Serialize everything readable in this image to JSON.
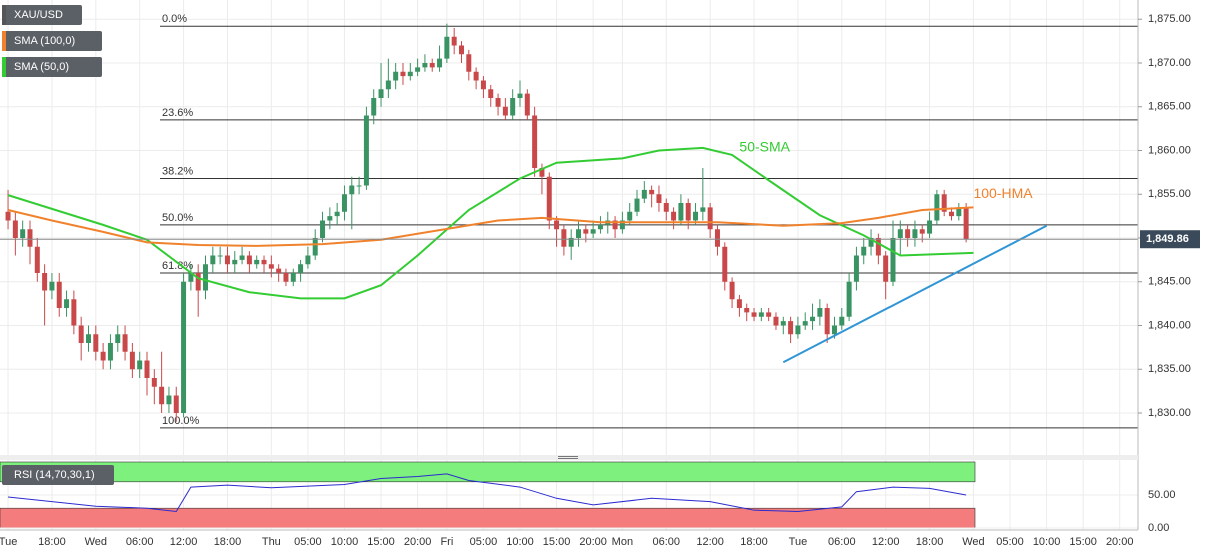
{
  "chart_data": {
    "type": "candlestick",
    "symbol": "XAU/USD",
    "legend": [
      {
        "name": "XAU/USD",
        "color": "#555555"
      },
      {
        "name": "SMA (100,0)",
        "color": "#f0822d"
      },
      {
        "name": "SMA (50,0)",
        "color": "#33cc33"
      }
    ],
    "up_color": "#3a9363",
    "down_color": "#c9494a",
    "xlim": [
      -1.1,
      154.5
    ],
    "xticks": [
      {
        "value": 0,
        "label": "Tue"
      },
      {
        "value": 6,
        "label": "18:00"
      },
      {
        "value": 12,
        "label": "Wed"
      },
      {
        "value": 18,
        "label": "06:00"
      },
      {
        "value": 24,
        "label": "12:00"
      },
      {
        "value": 30,
        "label": "18:00"
      },
      {
        "value": 36,
        "label": "Thu"
      },
      {
        "value": 41,
        "label": "05:00"
      },
      {
        "value": 46,
        "label": "10:00"
      },
      {
        "value": 51,
        "label": "15:00"
      },
      {
        "value": 56,
        "label": "20:00"
      },
      {
        "value": 60,
        "label": "Fri"
      },
      {
        "value": 65,
        "label": "05:00"
      },
      {
        "value": 70,
        "label": "10:00"
      },
      {
        "value": 75,
        "label": "15:00"
      },
      {
        "value": 80,
        "label": "20:00"
      },
      {
        "value": 84,
        "label": "Mon"
      },
      {
        "value": 90,
        "label": "06:00"
      },
      {
        "value": 96,
        "label": "12:00"
      },
      {
        "value": 102,
        "label": "18:00"
      },
      {
        "value": 108,
        "label": "Tue"
      },
      {
        "value": 114,
        "label": "06:00"
      },
      {
        "value": 120,
        "label": "12:00"
      },
      {
        "value": 126,
        "label": "18:00"
      },
      {
        "value": 132,
        "label": "Wed"
      },
      {
        "value": 137,
        "label": "05:00"
      },
      {
        "value": 142,
        "label": "10:00"
      },
      {
        "value": 147,
        "label": "15:00"
      },
      {
        "value": 152,
        "label": "20:00"
      }
    ],
    "ylim": [
      1825.2,
      1877.2
    ],
    "yticks": [
      {
        "value": 1830,
        "label": "1,830.00"
      },
      {
        "value": 1835,
        "label": "1,835.00"
      },
      {
        "value": 1840,
        "label": "1,840.00"
      },
      {
        "value": 1845,
        "label": "1,845.00"
      },
      {
        "value": 1850,
        "label": "1,850.00"
      },
      {
        "value": 1855,
        "label": "1,855.00"
      },
      {
        "value": 1860,
        "label": "1,860.00"
      },
      {
        "value": 1865,
        "label": "1,865.00"
      },
      {
        "value": 1870,
        "label": "1,870.00"
      },
      {
        "value": 1875,
        "label": "1,875.00"
      }
    ],
    "grid": true,
    "ohlc": {
      "open": [
        1853,
        1852,
        1850,
        1851,
        1849,
        1846,
        1844,
        1845,
        1842,
        1843,
        1840,
        1838,
        1839,
        1837,
        1836,
        1838,
        1839,
        1837,
        1835,
        1836,
        1834,
        1833,
        1831,
        1832,
        1830,
        1845,
        1846,
        1844,
        1847,
        1848,
        1848,
        1847,
        1847.5,
        1848,
        1847,
        1847.5,
        1847,
        1846.5,
        1846,
        1845,
        1846,
        1847,
        1848,
        1850,
        1852,
        1852.5,
        1853,
        1855,
        1856,
        1856,
        1864,
        1866,
        1867,
        1868,
        1869,
        1868.5,
        1869,
        1869.5,
        1870,
        1869.5,
        1870.5,
        1873,
        1872,
        1871,
        1869,
        1868,
        1867,
        1866,
        1865,
        1864,
        1866,
        1866.5,
        1864,
        1858,
        1857,
        1852,
        1851,
        1849,
        1850,
        1851,
        1850.5,
        1851,
        1851.5,
        1852,
        1851,
        1852,
        1853,
        1854.5,
        1855.5,
        1855,
        1854,
        1853,
        1852,
        1854,
        1852,
        1853,
        1853.5,
        1851,
        1849,
        1845,
        1843,
        1842,
        1841.5,
        1841,
        1841.5,
        1841,
        1840,
        1840.5,
        1839,
        1840,
        1840.5,
        1841,
        1842,
        1839,
        1840,
        1841,
        1845,
        1848,
        1849,
        1850,
        1848,
        1845,
        1850,
        1851,
        1850,
        1851,
        1850.5,
        1852,
        1855,
        1853,
        1852.5,
        1853.5
      ],
      "high": [
        1855.5,
        1853,
        1852,
        1852,
        1850,
        1847,
        1846,
        1846,
        1844,
        1844,
        1841,
        1840,
        1840,
        1838,
        1839,
        1840,
        1840,
        1838,
        1837,
        1837,
        1835,
        1837,
        1833,
        1833,
        1846,
        1847,
        1847,
        1848,
        1849,
        1849,
        1849,
        1848.5,
        1849,
        1848.5,
        1848,
        1848,
        1848,
        1847,
        1846.5,
        1846.5,
        1847.5,
        1849,
        1851,
        1853,
        1853.5,
        1854,
        1856,
        1857,
        1857,
        1865,
        1867,
        1870,
        1870.5,
        1870,
        1870,
        1870,
        1870.5,
        1871,
        1870.5,
        1872,
        1874.5,
        1874,
        1872.5,
        1871.5,
        1869.5,
        1868.5,
        1867.5,
        1866.5,
        1866,
        1867,
        1868,
        1867,
        1865,
        1858.5,
        1857.5,
        1852.5,
        1851.5,
        1851,
        1852,
        1851.5,
        1852,
        1852.5,
        1853,
        1852.5,
        1853,
        1854,
        1855.5,
        1856.5,
        1856,
        1856,
        1854.5,
        1853.5,
        1855,
        1854.5,
        1854,
        1858,
        1854,
        1851.5,
        1849.5,
        1845.5,
        1843.5,
        1842.5,
        1842,
        1842,
        1842,
        1841.5,
        1841,
        1841,
        1841,
        1841.5,
        1842.5,
        1843,
        1842.5,
        1841,
        1842,
        1846,
        1849,
        1850,
        1851,
        1850.5,
        1848.5,
        1852,
        1852,
        1851.5,
        1852,
        1851.5,
        1853,
        1855.5,
        1855.5,
        1853.5,
        1854,
        1854
      ],
      "low": [
        1851,
        1848,
        1849,
        1847,
        1845,
        1840,
        1843,
        1841,
        1841,
        1839,
        1836,
        1837,
        1836,
        1835,
        1835,
        1837,
        1836,
        1834,
        1834,
        1832,
        1831,
        1830,
        1830,
        1829,
        1829.5,
        1844,
        1841,
        1843,
        1846,
        1847,
        1846,
        1846,
        1847,
        1846,
        1846.5,
        1846,
        1845.5,
        1845,
        1844.5,
        1844.5,
        1845,
        1846.5,
        1847.5,
        1849.5,
        1851,
        1851.5,
        1852,
        1851,
        1855,
        1855.5,
        1863,
        1865,
        1866,
        1867,
        1867.5,
        1868,
        1868.5,
        1869,
        1869,
        1869,
        1870,
        1871,
        1870,
        1868,
        1867,
        1866,
        1865,
        1864,
        1863.5,
        1863.5,
        1865,
        1863.5,
        1857,
        1855,
        1851,
        1849,
        1848,
        1847.5,
        1849,
        1849.5,
        1850,
        1850.5,
        1850.5,
        1850,
        1850.5,
        1851.5,
        1852.5,
        1854,
        1853.5,
        1853,
        1852,
        1851,
        1851.5,
        1851,
        1851.5,
        1852,
        1850,
        1848,
        1844,
        1842,
        1841,
        1840.5,
        1840.5,
        1840.5,
        1840.5,
        1839.5,
        1839,
        1838,
        1838.5,
        1839.5,
        1839.5,
        1840,
        1838,
        1838.5,
        1839.5,
        1840.5,
        1844,
        1847,
        1848,
        1847,
        1843,
        1844.5,
        1848,
        1849,
        1849,
        1849.5,
        1850,
        1851.5,
        1852.5,
        1852,
        1852,
        1849.5
      ],
      "close": [
        1852,
        1850,
        1851,
        1849,
        1846,
        1844,
        1845,
        1842,
        1843,
        1840,
        1838,
        1839,
        1837,
        1836,
        1838,
        1839,
        1837,
        1835,
        1836,
        1834,
        1833,
        1831,
        1832,
        1830,
        1845,
        1846,
        1844,
        1847,
        1848,
        1848,
        1847,
        1847.5,
        1848,
        1847,
        1847.5,
        1847,
        1846.5,
        1846,
        1845,
        1846,
        1847,
        1848,
        1850,
        1852,
        1852.5,
        1853,
        1855,
        1856,
        1856,
        1864,
        1866,
        1867,
        1868,
        1869,
        1868.5,
        1869,
        1869.5,
        1870,
        1869.5,
        1870.5,
        1873,
        1872,
        1871,
        1869,
        1868,
        1867,
        1866,
        1865,
        1864,
        1866,
        1866.5,
        1864,
        1858,
        1857,
        1852,
        1851,
        1849,
        1850,
        1851,
        1850.5,
        1851,
        1851.5,
        1852,
        1851,
        1852,
        1853,
        1854.5,
        1855.5,
        1855,
        1854,
        1853,
        1852,
        1854,
        1852,
        1853,
        1853.5,
        1851,
        1849,
        1845,
        1843,
        1842,
        1841.5,
        1841,
        1841.5,
        1841,
        1840,
        1840.5,
        1839,
        1840,
        1840.5,
        1841,
        1842,
        1839,
        1840,
        1841,
        1845,
        1848,
        1849,
        1850,
        1848,
        1845,
        1850,
        1851,
        1850,
        1851,
        1850.5,
        1852,
        1855,
        1853,
        1852.5,
        1853.5,
        1849.86
      ]
    },
    "last_price_label": "1,849.86",
    "series": [
      {
        "name": "50-SMA",
        "color": "#33cc33",
        "x": [
          0,
          13,
          19,
          26,
          33,
          40,
          46,
          51,
          56,
          63,
          70,
          75,
          84,
          89,
          95,
          99,
          104,
          111,
          117,
          122,
          132
        ],
        "values": [
          1854.9,
          1851.5,
          1849.8,
          1845.4,
          1843.8,
          1843.1,
          1843.1,
          1844.6,
          1848.0,
          1853.2,
          1856.8,
          1858.6,
          1859.1,
          1860.0,
          1860.3,
          1859.5,
          1856.6,
          1852.6,
          1850.3,
          1848.0,
          1848.3
        ]
      },
      {
        "name": "100-HMA",
        "color": "#f0822d",
        "x": [
          0,
          6,
          13,
          19,
          26,
          34,
          43,
          51,
          59,
          67,
          73,
          81,
          89,
          97,
          106,
          114,
          119,
          125,
          132
        ],
        "values": [
          1853.2,
          1852.0,
          1850.7,
          1849.5,
          1849.2,
          1849.1,
          1849.3,
          1849.8,
          1850.9,
          1852.0,
          1852.3,
          1851.8,
          1851.8,
          1851.8,
          1851.4,
          1851.7,
          1852.3,
          1853.2,
          1853.5
        ]
      }
    ],
    "annotations": [
      {
        "text": "50-SMA",
        "x": 100,
        "value": 1860.3,
        "color": "#33cc33"
      },
      {
        "text": "100-HMA",
        "x": 132,
        "value": 1855,
        "color": "#f0822d"
      }
    ],
    "trendline": {
      "color": "#2f95d6",
      "x": [
        106,
        142
      ],
      "values": [
        1835.8,
        1851.4
      ]
    },
    "fib_levels": [
      {
        "label": "0.0%",
        "value": 1874.2
      },
      {
        "label": "23.6%",
        "value": 1863.5
      },
      {
        "label": "38.2%",
        "value": 1856.8
      },
      {
        "label": "50.0%",
        "value": 1851.5
      },
      {
        "label": "61.8%",
        "value": 1846
      },
      {
        "label": "100.0%",
        "value": 1828.3
      }
    ],
    "rsi": {
      "name": "RSI (14,70,30,1)",
      "color": "#2b2bd0",
      "ylim": [
        0,
        100
      ],
      "yticks": [
        {
          "value": 0,
          "label": "0.00"
        },
        {
          "value": 50,
          "label": "50.00"
        }
      ],
      "upper": 70,
      "lower": 30,
      "x": [
        0,
        6,
        12,
        19,
        23,
        25,
        30,
        36,
        46,
        51,
        56,
        60,
        63,
        70,
        75,
        80,
        88,
        96,
        102,
        108,
        114,
        116,
        121,
        126,
        131
      ],
      "values": [
        47,
        40,
        33,
        30,
        25,
        62,
        65,
        61,
        66,
        75,
        78,
        82,
        72,
        62,
        45,
        35,
        45,
        40,
        27,
        25,
        32,
        55,
        62,
        60,
        50
      ]
    }
  }
}
